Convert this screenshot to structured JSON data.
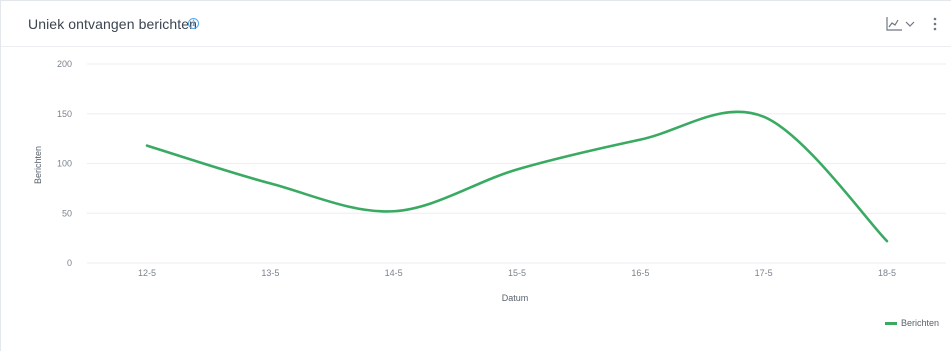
{
  "widget": {
    "title": "Uniek ontvangen berichten",
    "info_icon": "info-icon",
    "chart_type_icon": "line-chart-icon",
    "menu_icon": "vertical-dots-icon"
  },
  "colors": {
    "series": "#3aaa63",
    "grid": "#eceef1",
    "info": "#55a7f2"
  },
  "chart_data": {
    "type": "line",
    "title": "Uniek ontvangen berichten",
    "xlabel": "Datum",
    "ylabel": "Berichten",
    "categories": [
      "12-5",
      "13-5",
      "14-5",
      "15-5",
      "16-5",
      "17-5",
      "18-5"
    ],
    "series": [
      {
        "name": "Berichten",
        "values": [
          118,
          80,
          52,
          94,
          124,
          147,
          22
        ]
      }
    ],
    "ylim": [
      0,
      200
    ],
    "yticks": [
      0,
      50,
      100,
      150,
      200
    ],
    "grid": true,
    "smooth": true,
    "legend": "bottom-right"
  }
}
